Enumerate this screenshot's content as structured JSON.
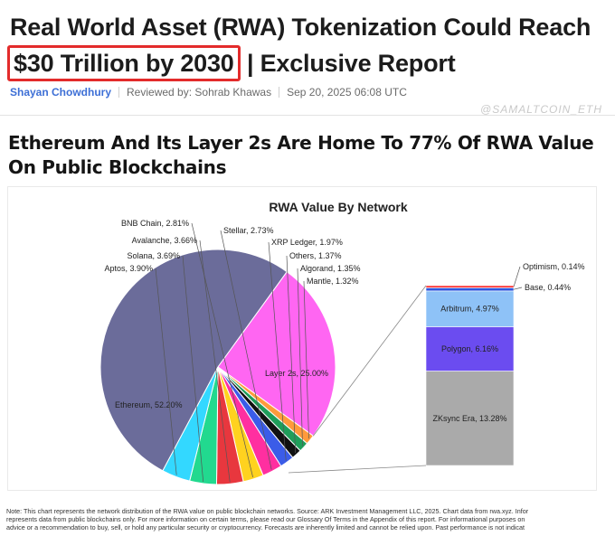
{
  "article": {
    "headline_line1": "Real World Asset (RWA) Tokenization Could Reach",
    "headline_highlight": "$30 Trillion by 2030",
    "headline_rest": " | Exclusive Report",
    "author": "Shayan Chowdhury",
    "reviewed_by": "Reviewed by: Sohrab Khawas",
    "date": "Sep 20, 2025 06:08 UTC",
    "watermark": "@SAMALTCOIN_ETH",
    "section_title": "Ethereum And Its Layer 2s Are Home To 77% Of RWA Value On Public Blockchains",
    "note_line1": "Note: This chart represents the network distribution of the RWA value on public blockchain networks.  Source: ARK Investment Management LLC, 2025. Chart data from rwa.xyz. Infor",
    "note_line2": "represents data from public blockchains only. For more information on certain terms, please read our Glossary Of Terms in the Appendix of this report. For informational purposes on",
    "note_line3": "advice or a recommendation to buy, sell, or hold any particular security or cryptocurrency. Forecasts are inherently limited and cannot be relied upon. Past performance is not indicat",
    "highlight_color": "#e32b2b"
  },
  "chart_data": {
    "type": "pie",
    "title": "RWA Value By Network",
    "slices": [
      {
        "label": "Ethereum, 52.20%",
        "value": 52.2,
        "color": "#6b6c9a"
      },
      {
        "label": "Layer 2s, 25.00%",
        "value": 25.0,
        "color": "#ff66f2"
      },
      {
        "label": "Mantle, 1.32%",
        "value": 1.32,
        "color": "#ff9a3c"
      },
      {
        "label": "Algorand, 1.35%",
        "value": 1.35,
        "color": "#1f9e5a"
      },
      {
        "label": "Others, 1.37%",
        "value": 1.37,
        "color": "#111111"
      },
      {
        "label": "XRP Ledger, 1.97%",
        "value": 1.97,
        "color": "#3b5ce8"
      },
      {
        "label": "Stellar, 2.73%",
        "value": 2.73,
        "color": "#ff2fa0"
      },
      {
        "label": "BNB Chain, 2.81%",
        "value": 2.81,
        "color": "#ffd21f"
      },
      {
        "label": "Avalanche, 3.66%",
        "value": 3.66,
        "color": "#e8373e"
      },
      {
        "label": "Solana, 3.69%",
        "value": 3.69,
        "color": "#22d98f"
      },
      {
        "label": "Aptos, 3.90%",
        "value": 3.9,
        "color": "#33d8ff"
      }
    ],
    "breakdown": {
      "of": "Layer 2s, 25.00%",
      "segments": [
        {
          "label": "ZKsync Era, 13.28%",
          "value": 13.28,
          "color": "#aaaaaa"
        },
        {
          "label": "Polygon, 6.16%",
          "value": 6.16,
          "color": "#6b4cf0"
        },
        {
          "label": "Arbitrum, 4.97%",
          "value": 4.97,
          "color": "#8ec2f7"
        },
        {
          "label": "Base, 0.44%",
          "value": 0.44,
          "color": "#2c56e0"
        },
        {
          "label": "Optimism, 0.14%",
          "value": 0.14,
          "color": "#ff3030"
        }
      ]
    }
  }
}
